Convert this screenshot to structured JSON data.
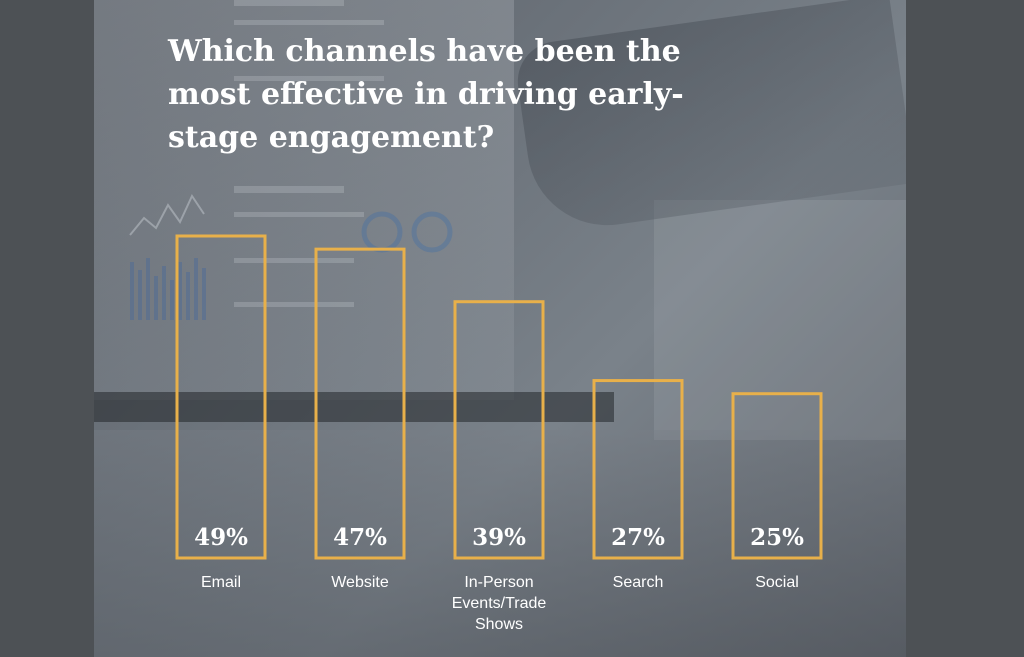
{
  "title": "Which channels have been the most effective in driving early-stage engagement?",
  "colors": {
    "bar_outline": "#e8b04a",
    "text": "#ffffff",
    "page_background": "#4d5155"
  },
  "chart_data": {
    "type": "bar",
    "title": "Which channels have been the most effective in driving early-stage engagement?",
    "categories": [
      "Email",
      "Website",
      "In-Person Events/Trade Shows",
      "Search",
      "Social"
    ],
    "values": [
      49,
      47,
      39,
      27,
      25
    ],
    "value_labels": [
      "49%",
      "47%",
      "39%",
      "27%",
      "25%"
    ],
    "category_label_lines": [
      [
        "Email"
      ],
      [
        "Website"
      ],
      [
        "In-Person",
        "Events/Trade",
        "Shows"
      ],
      [
        "Search"
      ],
      [
        "Social"
      ]
    ],
    "ylim": [
      0,
      49
    ],
    "xlabel": "",
    "ylabel": "",
    "grid": false,
    "legend": "none"
  }
}
